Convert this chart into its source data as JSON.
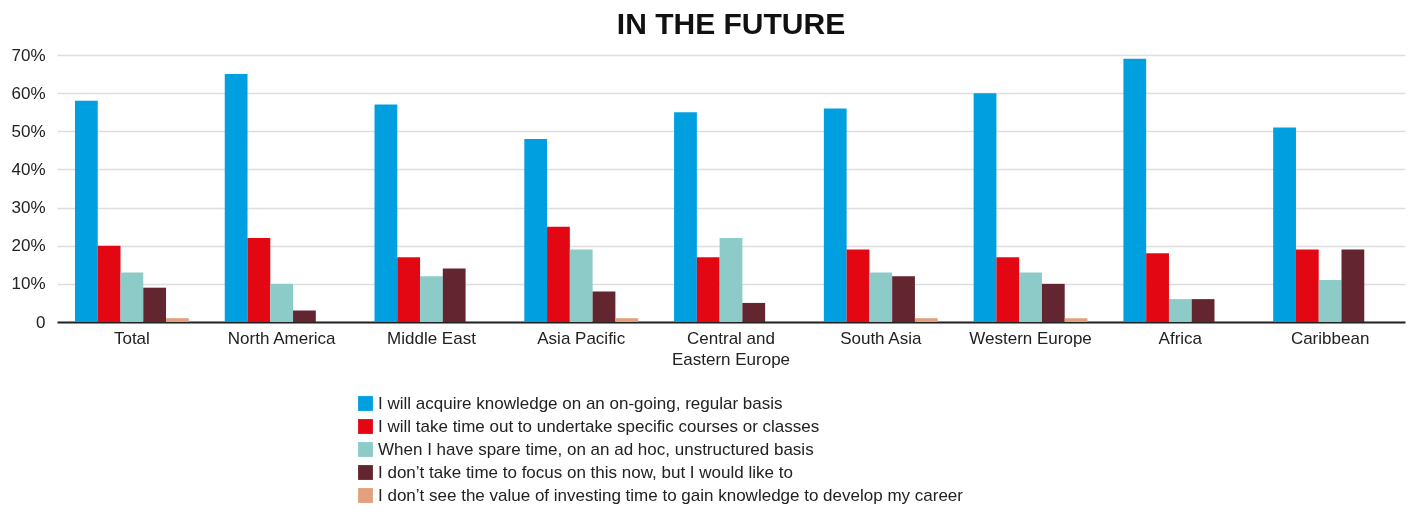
{
  "chart_data": {
    "type": "bar",
    "title": "IN THE FUTURE",
    "categories": [
      "Total",
      "North America",
      "Middle East",
      "Asia Pacific",
      "Central and Eastern Europe",
      "South Asia",
      "Western Europe",
      "Africa",
      "Caribbean"
    ],
    "series": [
      {
        "name": "I will acquire knowledge on an on-going, regular basis",
        "color": "#009fdf",
        "values": [
          58,
          65,
          57,
          48,
          55,
          56,
          60,
          69,
          51
        ]
      },
      {
        "name": "I will take time out to undertake specific courses or classes",
        "color": "#e30613",
        "values": [
          20,
          22,
          17,
          25,
          17,
          19,
          17,
          18,
          19
        ]
      },
      {
        "name": "When I have spare time, on an ad hoc, unstructured basis",
        "color": "#8ccbc8",
        "values": [
          13,
          10,
          12,
          19,
          22,
          13,
          13,
          6,
          11
        ]
      },
      {
        "name": "I don’t take time to focus on this now, but I would like to",
        "color": "#632530",
        "values": [
          9,
          3,
          14,
          8,
          5,
          12,
          10,
          6,
          19
        ]
      },
      {
        "name": "I don’t see the value of investing time to gain knowledge to develop my career",
        "color": "#e3a07c",
        "values": [
          1,
          null,
          null,
          1,
          null,
          1,
          1,
          null,
          null
        ]
      }
    ],
    "ylim": [
      0,
      70
    ],
    "yticks": [
      0,
      {
        "value": 10,
        "label": "10%"
      },
      {
        "value": 20,
        "label": "20%"
      },
      {
        "value": 30,
        "label": "30%"
      },
      {
        "value": 40,
        "label": "40%"
      },
      {
        "value": 50,
        "label": "50%"
      },
      {
        "value": 60,
        "label": "60%"
      },
      {
        "value": 70,
        "label": "70%"
      }
    ],
    "grid": "y",
    "legend": "bottom"
  }
}
